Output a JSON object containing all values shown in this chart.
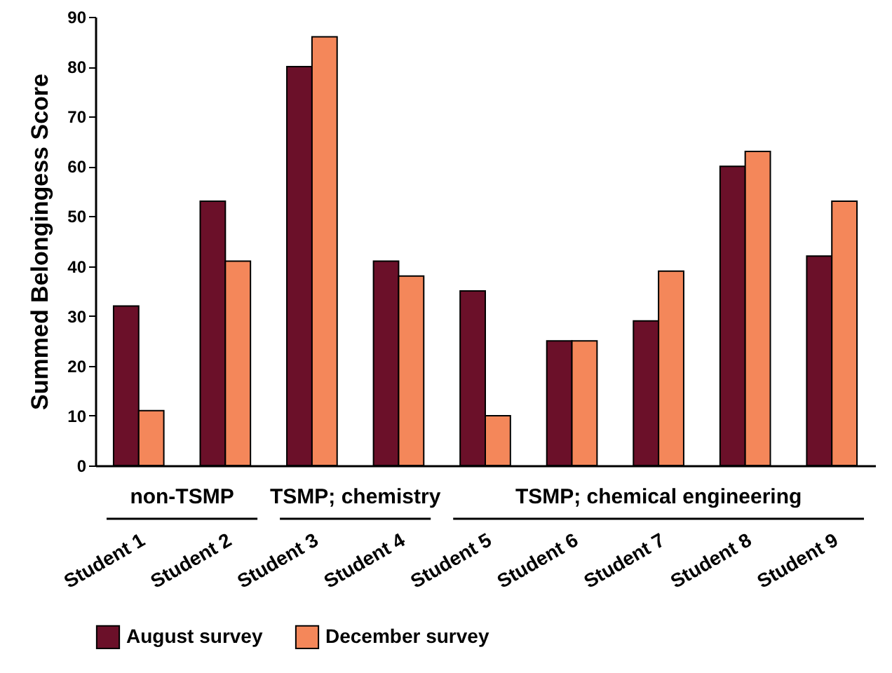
{
  "chart_data": {
    "type": "bar",
    "ylabel": "Summed Belongingess Score",
    "categories": [
      "Student 1",
      "Student 2",
      "Student 3",
      "Student 4",
      "Student 5",
      "Student 6",
      "Student 7",
      "Student 8",
      "Student 9"
    ],
    "series": [
      {
        "name": "August survey",
        "color": "#6b1029",
        "values": [
          32,
          53,
          80,
          41,
          35,
          25,
          29,
          60,
          42
        ]
      },
      {
        "name": "December survey",
        "color": "#f4875a",
        "values": [
          11,
          41,
          86,
          38,
          10,
          25,
          39,
          63,
          53
        ]
      }
    ],
    "ylim": [
      0,
      90
    ],
    "yticks": [
      0,
      10,
      20,
      30,
      40,
      50,
      60,
      70,
      80,
      90
    ],
    "grid": false,
    "legend": "bottom",
    "annotations": [
      "non-TSMP",
      "TSMP; chemistry",
      "TSMP; chemical engineering"
    ]
  }
}
